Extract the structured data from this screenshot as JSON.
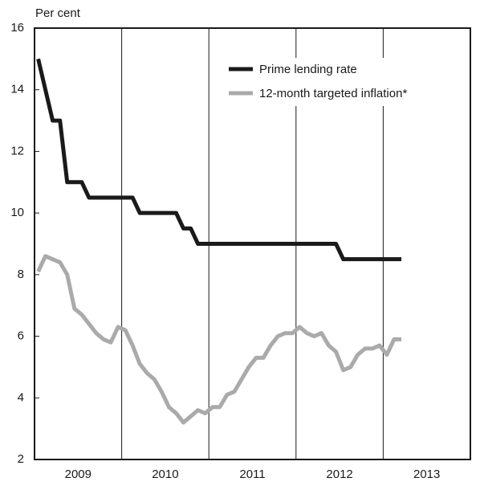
{
  "chart_data": {
    "type": "line",
    "ylabel": "Per cent",
    "x": [
      2009.042,
      2009.125,
      2009.208,
      2009.292,
      2009.375,
      2009.458,
      2009.542,
      2009.625,
      2009.708,
      2009.792,
      2009.875,
      2009.958,
      2010.042,
      2010.125,
      2010.208,
      2010.292,
      2010.375,
      2010.458,
      2010.542,
      2010.625,
      2010.708,
      2010.792,
      2010.875,
      2010.958,
      2011.042,
      2011.125,
      2011.208,
      2011.292,
      2011.375,
      2011.458,
      2011.542,
      2011.625,
      2011.708,
      2011.792,
      2011.875,
      2011.958,
      2012.042,
      2012.125,
      2012.208,
      2012.292,
      2012.375,
      2012.458,
      2012.542,
      2012.625,
      2012.708,
      2012.792,
      2012.875,
      2012.958,
      2013.042,
      2013.125,
      2013.208
    ],
    "series": [
      {
        "name": "Prime lending rate",
        "color": "#1a1a1a",
        "values": [
          15,
          14,
          13,
          13,
          11,
          11,
          11,
          10.5,
          10.5,
          10.5,
          10.5,
          10.5,
          10.5,
          10.5,
          10,
          10,
          10,
          10,
          10,
          10,
          9.5,
          9.5,
          9,
          9,
          9,
          9,
          9,
          9,
          9,
          9,
          9,
          9,
          9,
          9,
          9,
          9,
          9,
          9,
          9,
          9,
          9,
          9,
          8.5,
          8.5,
          8.5,
          8.5,
          8.5,
          8.5,
          8.5,
          8.5,
          8.5
        ]
      },
      {
        "name": "12-month targeted inflation*",
        "color": "#aaaaaa",
        "values": [
          8.1,
          8.6,
          8.5,
          8.4,
          8.0,
          6.9,
          6.7,
          6.4,
          6.1,
          5.9,
          5.8,
          6.3,
          6.2,
          5.7,
          5.1,
          4.8,
          4.6,
          4.2,
          3.7,
          3.5,
          3.2,
          3.4,
          3.6,
          3.5,
          3.7,
          3.7,
          4.1,
          4.2,
          4.6,
          5.0,
          5.3,
          5.3,
          5.7,
          6.0,
          6.1,
          6.1,
          6.3,
          6.1,
          6.0,
          6.1,
          5.7,
          5.5,
          4.9,
          5.0,
          5.4,
          5.6,
          5.6,
          5.7,
          5.4,
          5.9,
          5.9
        ]
      }
    ],
    "xlim": [
      2009,
      2014
    ],
    "xticks": [
      {
        "value": 2009,
        "label": "2009"
      },
      {
        "value": 2010,
        "label": "2010"
      },
      {
        "value": 2011,
        "label": "2011"
      },
      {
        "value": 2012,
        "label": "2012"
      },
      {
        "value": 2013,
        "label": "2013"
      }
    ],
    "ylim": [
      2,
      16
    ],
    "yticks": [
      2,
      4,
      6,
      8,
      10,
      12,
      14,
      16
    ],
    "grid": true,
    "legend": "upper right"
  }
}
